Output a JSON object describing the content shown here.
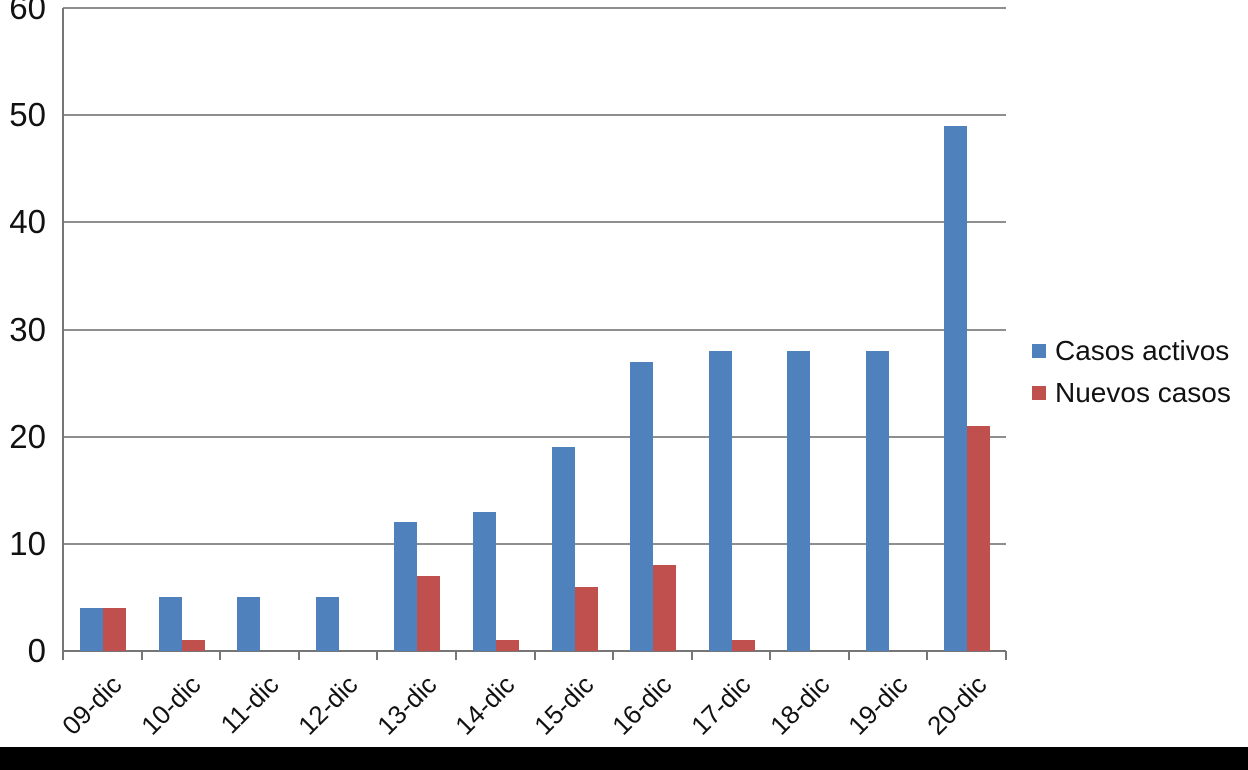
{
  "chart_data": {
    "type": "bar",
    "title": "",
    "categories": [
      "09-dic",
      "10-dic",
      "11-dic",
      "12-dic",
      "13-dic",
      "14-dic",
      "15-dic",
      "16-dic",
      "17-dic",
      "18-dic",
      "19-dic",
      "20-dic"
    ],
    "series": [
      {
        "name": "Casos activos",
        "color": "#4f81bd",
        "values": [
          4,
          5,
          5,
          5,
          12,
          13,
          19,
          27,
          28,
          28,
          28,
          49
        ]
      },
      {
        "name": "Nuevos casos",
        "color": "#c0504d",
        "values": [
          4,
          1,
          0,
          0,
          7,
          1,
          6,
          8,
          1,
          0,
          0,
          21
        ]
      }
    ],
    "xlabel": "",
    "ylabel": "",
    "ylim": [
      0,
      60
    ],
    "yticks": [
      0,
      10,
      20,
      30,
      40,
      50,
      60
    ],
    "grid": true,
    "legend_position": "right"
  },
  "footer": {
    "color": "#000000"
  }
}
